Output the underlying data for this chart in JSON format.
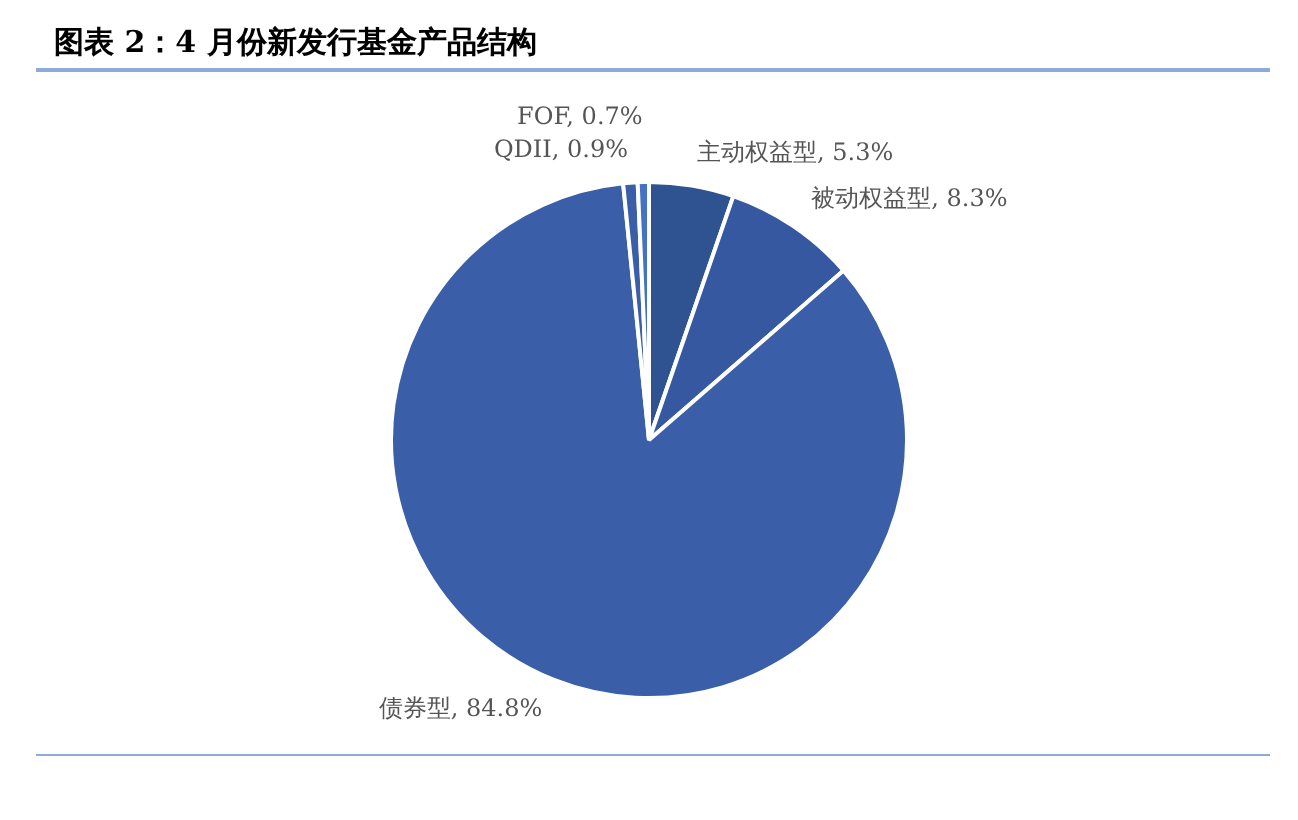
{
  "chart_data": {
    "type": "pie",
    "title": "图表 2：4 月份新发行基金产品结构",
    "categories": [
      "主动权益型",
      "被动权益型",
      "债券型",
      "QDII",
      "FOF"
    ],
    "values": [
      5.3,
      8.3,
      84.8,
      0.9,
      0.7
    ],
    "colors": [
      "#2f5290",
      "#3558a0",
      "#3a5ea8",
      "#3a5ea8",
      "#4472c4"
    ],
    "value_labels": [
      ", 5.3%",
      ", 8.3%",
      ", 84.8%",
      ", 0.9%",
      ", 0.7%"
    ],
    "legend": false
  }
}
